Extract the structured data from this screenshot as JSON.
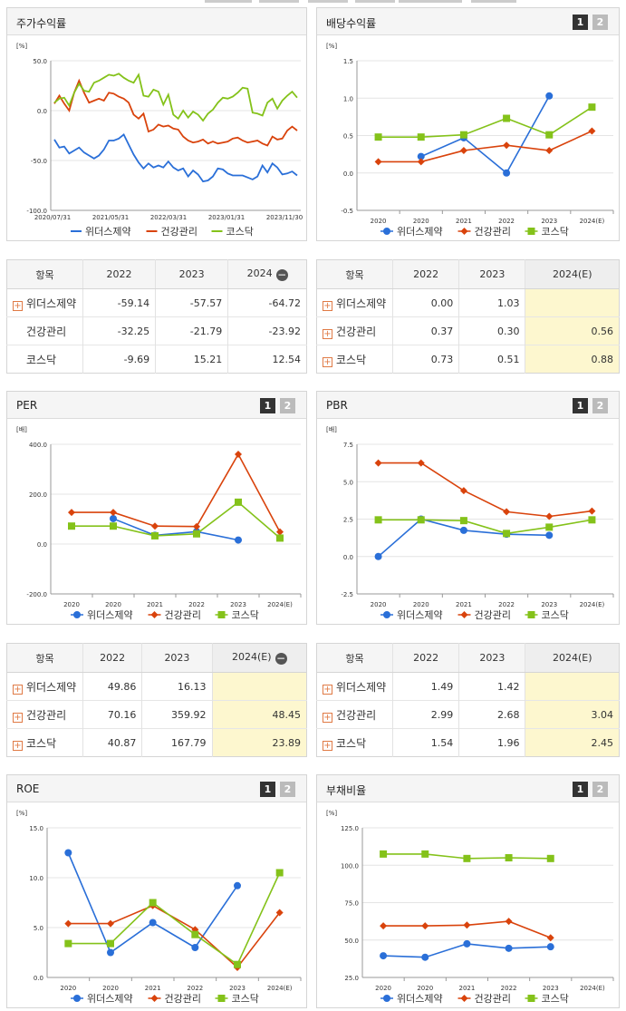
{
  "colors": {
    "widers": "#2a6fd8",
    "health": "#d9430c",
    "kosdaq": "#84c21a",
    "grid": "#e4e4e4",
    "highlight": "#fdf7cf"
  },
  "pager": {
    "one": "1",
    "two": "2"
  },
  "panels": {
    "stock": {
      "title": "주가수익률",
      "unit": "[%]",
      "chart_data": {
        "type": "line",
        "ylim": [
          -100,
          50
        ],
        "y_ticks": [
          "50.0",
          "0.0",
          "-50.0",
          "-100.0"
        ],
        "x_ticks": [
          "2020/07/31",
          "2021/05/31",
          "2022/03/31",
          "2023/01/31",
          "2023/11/30"
        ],
        "series": [
          {
            "name": "위더스제약",
            "values": [
              -29,
              -37,
              -36,
              -43,
              -40,
              -37,
              -42,
              -45,
              -48,
              -45,
              -39,
              -30,
              -30,
              -28,
              -24,
              -34,
              -44,
              -52,
              -58,
              -53,
              -57,
              -55,
              -57,
              -51,
              -57,
              -60,
              -58,
              -66,
              -60,
              -64,
              -71,
              -70,
              -66,
              -58,
              -59,
              -63,
              -65,
              -65,
              -65,
              -67,
              -69,
              -66,
              -55,
              -62,
              -53,
              -57,
              -64,
              -63,
              -61,
              -65
            ]
          },
          {
            "name": "건강관리",
            "values": [
              7,
              15,
              7,
              0,
              18,
              30,
              18,
              8,
              10,
              12,
              10,
              18,
              17,
              14,
              12,
              8,
              -4,
              -8,
              -3,
              -21,
              -19,
              -14,
              -16,
              -15,
              -18,
              -19,
              -26,
              -30,
              -32,
              -31,
              -29,
              -33,
              -31,
              -33,
              -32,
              -31,
              -28,
              -27,
              -30,
              -32,
              -31,
              -30,
              -33,
              -35,
              -26,
              -29,
              -28,
              -20,
              -16,
              -20
            ]
          },
          {
            "name": "코스닥",
            "values": [
              8,
              12,
              13,
              5,
              18,
              27,
              20,
              19,
              28,
              30,
              33,
              36,
              35,
              37,
              33,
              30,
              28,
              36,
              15,
              14,
              21,
              19,
              6,
              16,
              -4,
              -8,
              0,
              -7,
              -1,
              -4,
              -10,
              -3,
              1,
              8,
              13,
              12,
              14,
              18,
              23,
              22,
              -2,
              -3,
              -5,
              8,
              12,
              2,
              10,
              15,
              19,
              13
            ]
          }
        ]
      },
      "table": {
        "header": [
          "항목",
          "2022",
          "2023",
          "2024"
        ],
        "rows": [
          {
            "label": "위더스제약",
            "cells": [
              "-59.14",
              "-57.57",
              "-64.72"
            ]
          },
          {
            "label": "건강관리",
            "cells": [
              "-32.25",
              "-21.79",
              "-23.92"
            ]
          },
          {
            "label": "코스닥",
            "cells": [
              "-9.69",
              "15.21",
              "12.54"
            ]
          }
        ]
      }
    },
    "dividend": {
      "title": "배당수익률",
      "unit": "[%]",
      "chart_data": {
        "type": "line",
        "ylim": [
          -0.5,
          1.5
        ],
        "y_ticks": [
          "1.5",
          "1.0",
          "0.5",
          "0.0",
          "-0.5"
        ],
        "categories": [
          "2020",
          "2020",
          "2021",
          "2022",
          "2023",
          "2024(E)"
        ],
        "series": [
          {
            "name": "위더스제약",
            "values": [
              null,
              0.22,
              0.47,
              0.0,
              1.03,
              null
            ]
          },
          {
            "name": "건강관리",
            "values": [
              0.15,
              0.15,
              0.3,
              0.37,
              0.3,
              0.56
            ]
          },
          {
            "name": "코스닥",
            "values": [
              0.48,
              0.48,
              0.51,
              0.73,
              0.51,
              0.88
            ]
          }
        ]
      },
      "table": {
        "header": [
          "항목",
          "2022",
          "2023",
          "2024(E)"
        ],
        "rows": [
          {
            "label": "위더스제약",
            "cells": [
              "0.00",
              "1.03",
              ""
            ]
          },
          {
            "label": "건강관리",
            "cells": [
              "0.37",
              "0.30",
              "0.56"
            ]
          },
          {
            "label": "코스닥",
            "cells": [
              "0.73",
              "0.51",
              "0.88"
            ]
          }
        ]
      }
    },
    "per": {
      "title": "PER",
      "unit": "[배]",
      "chart_data": {
        "type": "line",
        "ylim": [
          -200,
          400
        ],
        "y_ticks": [
          "400.0",
          "200.0",
          "0.0",
          "-200.0"
        ],
        "categories": [
          "2020",
          "2020",
          "2021",
          "2022",
          "2023",
          "2024(E)"
        ],
        "series": [
          {
            "name": "위더스제약",
            "values": [
              null,
              102,
              35,
              49.86,
              16.13,
              null
            ]
          },
          {
            "name": "건강관리",
            "values": [
              127,
              127,
              72,
              70.16,
              359.92,
              48.45
            ]
          },
          {
            "name": "코스닥",
            "values": [
              72,
              72,
              33,
              40.87,
              167.79,
              23.89
            ]
          }
        ]
      },
      "table": {
        "header": [
          "항목",
          "2022",
          "2023",
          "2024(E)"
        ],
        "rows": [
          {
            "label": "위더스제약",
            "cells": [
              "49.86",
              "16.13",
              ""
            ]
          },
          {
            "label": "건강관리",
            "cells": [
              "70.16",
              "359.92",
              "48.45"
            ]
          },
          {
            "label": "코스닥",
            "cells": [
              "40.87",
              "167.79",
              "23.89"
            ]
          }
        ]
      }
    },
    "pbr": {
      "title": "PBR",
      "unit": "[배]",
      "chart_data": {
        "type": "line",
        "ylim": [
          -2.5,
          7.5
        ],
        "y_ticks": [
          "7.5",
          "5.0",
          "2.5",
          "0.0",
          "-2.5"
        ],
        "categories": [
          "2020",
          "2020",
          "2021",
          "2022",
          "2023",
          "2024(E)"
        ],
        "series": [
          {
            "name": "위더스제약",
            "values": [
              0.0,
              2.5,
              1.75,
              1.49,
              1.42,
              null
            ]
          },
          {
            "name": "건강관리",
            "values": [
              6.25,
              6.25,
              4.4,
              2.99,
              2.68,
              3.04
            ]
          },
          {
            "name": "코스닥",
            "values": [
              2.45,
              2.45,
              2.4,
              1.54,
              1.96,
              2.45
            ]
          }
        ]
      },
      "table": {
        "header": [
          "항목",
          "2022",
          "2023",
          "2024(E)"
        ],
        "rows": [
          {
            "label": "위더스제약",
            "cells": [
              "1.49",
              "1.42",
              ""
            ]
          },
          {
            "label": "건강관리",
            "cells": [
              "2.99",
              "2.68",
              "3.04"
            ]
          },
          {
            "label": "코스닥",
            "cells": [
              "1.54",
              "1.96",
              "2.45"
            ]
          }
        ]
      }
    },
    "roe": {
      "title": "ROE",
      "unit": "[%]",
      "chart_data": {
        "type": "line",
        "ylim": [
          0,
          15
        ],
        "y_ticks": [
          "15.0",
          "10.0",
          "5.0",
          "0.0"
        ],
        "categories": [
          "2020",
          "2020",
          "2021",
          "2022",
          "2023",
          "2024(E)"
        ],
        "series": [
          {
            "name": "위더스제약",
            "values": [
              12.5,
              2.5,
              5.5,
              3.0,
              9.2,
              null
            ]
          },
          {
            "name": "건강관리",
            "values": [
              5.4,
              5.4,
              7.2,
              4.8,
              1.0,
              6.5
            ]
          },
          {
            "name": "코스닥",
            "values": [
              3.4,
              3.4,
              7.5,
              4.3,
              1.3,
              10.5
            ]
          }
        ]
      }
    },
    "debt": {
      "title": "부채비율",
      "unit": "[%]",
      "chart_data": {
        "type": "line",
        "ylim": [
          25,
          125
        ],
        "y_ticks": [
          "125.0",
          "100.0",
          "75.0",
          "50.0",
          "25.0"
        ],
        "categories": [
          "2020",
          "2020",
          "2021",
          "2022",
          "2023",
          "2024(E)"
        ],
        "series": [
          {
            "name": "위더스제약",
            "values": [
              39.5,
              38.5,
              47.5,
              44.5,
              45.5,
              null
            ]
          },
          {
            "name": "건강관리",
            "values": [
              59.5,
              59.5,
              60,
              62.5,
              51.5,
              null
            ]
          },
          {
            "name": "코스닥",
            "values": [
              107.5,
              107.5,
              104.5,
              105,
              104.5,
              null
            ]
          }
        ]
      }
    }
  }
}
